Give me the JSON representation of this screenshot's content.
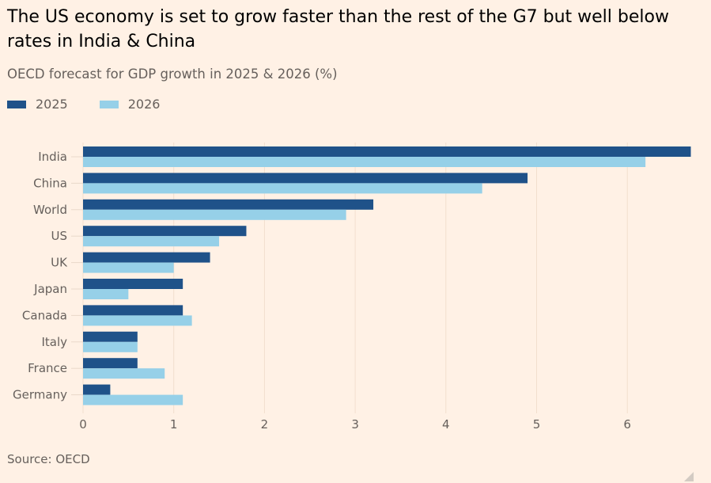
{
  "title": "The US economy is set to grow faster than the rest of the G7 but well below rates in India & China",
  "subtitle": "OECD forecast for GDP growth in 2025 & 2026 (%)",
  "source": "Source: OECD",
  "legend": [
    {
      "label": "2025",
      "color": "#1f5289"
    },
    {
      "label": "2026",
      "color": "#96d0e8"
    }
  ],
  "chart_data": {
    "type": "bar",
    "orientation": "horizontal",
    "title": "The US economy is set to grow faster than the rest of the G7 but well below rates in India & China",
    "subtitle": "OECD forecast for GDP growth in 2025 & 2026 (%)",
    "xlabel": "",
    "ylabel": "",
    "categories": [
      "India",
      "China",
      "World",
      "US",
      "UK",
      "Japan",
      "Canada",
      "Italy",
      "France",
      "Germany"
    ],
    "series": [
      {
        "name": "2025",
        "color": "#1f5289",
        "values": [
          6.7,
          4.9,
          3.2,
          1.8,
          1.4,
          1.1,
          1.1,
          0.6,
          0.6,
          0.3
        ]
      },
      {
        "name": "2026",
        "color": "#96d0e8",
        "values": [
          6.2,
          4.4,
          2.9,
          1.5,
          1.0,
          0.5,
          1.2,
          0.6,
          0.9,
          1.1
        ]
      }
    ],
    "xlim": [
      0,
      6.8
    ],
    "xticks": [
      0,
      1,
      2,
      3,
      4,
      5,
      6
    ],
    "grid": true,
    "legend_position": "top-left"
  }
}
